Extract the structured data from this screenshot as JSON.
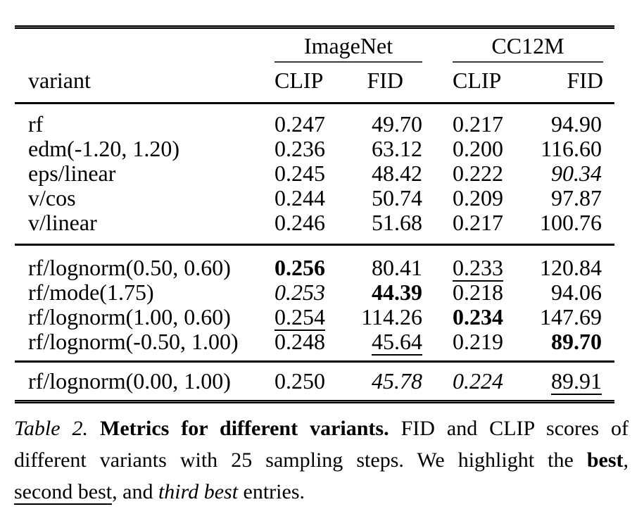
{
  "table": {
    "group_headers": [
      "ImageNet",
      "CC12M"
    ],
    "col_headers": [
      "variant",
      "CLIP",
      "FID",
      "CLIP",
      "FID"
    ],
    "blocks": [
      {
        "rows": [
          {
            "cells": [
              {
                "t": "rf"
              },
              {
                "t": "0.247"
              },
              {
                "t": "49.70"
              },
              {
                "t": "0.217"
              },
              {
                "t": "94.90"
              }
            ]
          },
          {
            "cells": [
              {
                "t": "edm(-1.20, 1.20)"
              },
              {
                "t": "0.236"
              },
              {
                "t": "63.12"
              },
              {
                "t": "0.200"
              },
              {
                "t": "116.60"
              }
            ]
          },
          {
            "cells": [
              {
                "t": "eps/linear"
              },
              {
                "t": "0.245"
              },
              {
                "t": "48.42"
              },
              {
                "t": "0.222"
              },
              {
                "t": "90.34",
                "s": "italic"
              }
            ]
          },
          {
            "cells": [
              {
                "t": "v/cos"
              },
              {
                "t": "0.244"
              },
              {
                "t": "50.74"
              },
              {
                "t": "0.209"
              },
              {
                "t": "97.87"
              }
            ]
          },
          {
            "cells": [
              {
                "t": "v/linear"
              },
              {
                "t": "0.246"
              },
              {
                "t": "51.68"
              },
              {
                "t": "0.217"
              },
              {
                "t": "100.76"
              }
            ]
          }
        ]
      },
      {
        "rows": [
          {
            "cells": [
              {
                "t": "rf/lognorm(0.50, 0.60)"
              },
              {
                "t": "0.256",
                "s": "bold"
              },
              {
                "t": "80.41"
              },
              {
                "t": "0.233",
                "s": "underline"
              },
              {
                "t": "120.84"
              }
            ]
          },
          {
            "cells": [
              {
                "t": "rf/mode(1.75)"
              },
              {
                "t": "0.253",
                "s": "italic"
              },
              {
                "t": "44.39",
                "s": "bold"
              },
              {
                "t": "0.218"
              },
              {
                "t": "94.06"
              }
            ]
          },
          {
            "cells": [
              {
                "t": "rf/lognorm(1.00, 0.60)"
              },
              {
                "t": "0.254",
                "s": "underline"
              },
              {
                "t": "114.26"
              },
              {
                "t": "0.234",
                "s": "bold"
              },
              {
                "t": "147.69"
              }
            ]
          },
          {
            "cells": [
              {
                "t": "rf/lognorm(-0.50, 1.00)"
              },
              {
                "t": "0.248"
              },
              {
                "t": "45.64",
                "s": "underline"
              },
              {
                "t": "0.219"
              },
              {
                "t": "89.70",
                "s": "bold"
              }
            ]
          }
        ]
      },
      {
        "rows": [
          {
            "cells": [
              {
                "t": "rf/lognorm(0.00, 1.00)"
              },
              {
                "t": "0.250"
              },
              {
                "t": "45.78",
                "s": "italic"
              },
              {
                "t": "0.224",
                "s": "italic"
              },
              {
                "t": "89.91",
                "s": "underline"
              }
            ]
          }
        ]
      }
    ]
  },
  "caption": {
    "lines": [
      {
        "justify": true,
        "segments": [
          {
            "t": "Table 2.",
            "s": "italic"
          },
          {
            "t": " ",
            "s": "regular"
          },
          {
            "t": "Metrics for different variants.",
            "s": "bold"
          },
          {
            "t": " FID and CLIP scores of",
            "s": "regular"
          }
        ]
      },
      {
        "justify": true,
        "segments": [
          {
            "t": "different variants with 25 sampling steps. We highlight the ",
            "s": "regular"
          },
          {
            "t": "best",
            "s": "bold"
          },
          {
            "t": ",",
            "s": "regular"
          }
        ]
      },
      {
        "justify": false,
        "segments": [
          {
            "t": "second best",
            "s": "underline"
          },
          {
            "t": ", and ",
            "s": "regular"
          },
          {
            "t": "third best",
            "s": "italic"
          },
          {
            "t": " entries.",
            "s": "regular"
          }
        ]
      }
    ]
  }
}
